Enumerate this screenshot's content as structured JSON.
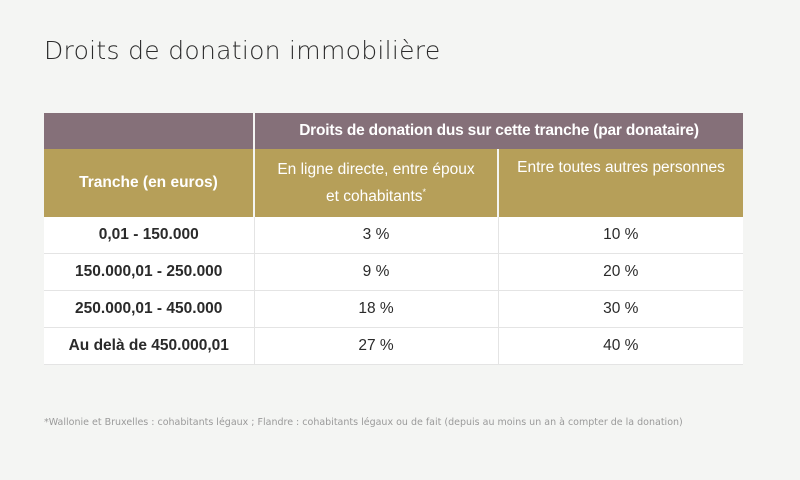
{
  "page": {
    "title": "Droits de donation immobilière"
  },
  "table": {
    "group_header": "Droits de donation dus sur cette tranche (par donataire)",
    "tranche_header": "Tranche (en euros)",
    "direct_header_line1": "En ligne directe, entre époux",
    "direct_header_line2": "et cohabitants",
    "direct_header_mark": "*",
    "other_header": "Entre toutes autres personnes",
    "rows": [
      {
        "tranche": "0,01 - 150.000",
        "direct": "3 %",
        "other": "10 %"
      },
      {
        "tranche": "150.000,01 - 250.000",
        "direct": "9 %",
        "other": "20 %"
      },
      {
        "tranche": "250.000,01 - 450.000",
        "direct": "18 %",
        "other": "30 %"
      },
      {
        "tranche": "Au delà de 450.000,01",
        "direct": "27 %",
        "other": "40 %"
      }
    ]
  },
  "footnote": "*Wallonie et Bruxelles : cohabitants légaux ; Flandre : cohabitants légaux ou de fait (depuis au moins un an à compter de la donation)",
  "colors": {
    "header_top": "#857079",
    "header_sub": "#b69f59",
    "background": "#f4f5f3"
  }
}
